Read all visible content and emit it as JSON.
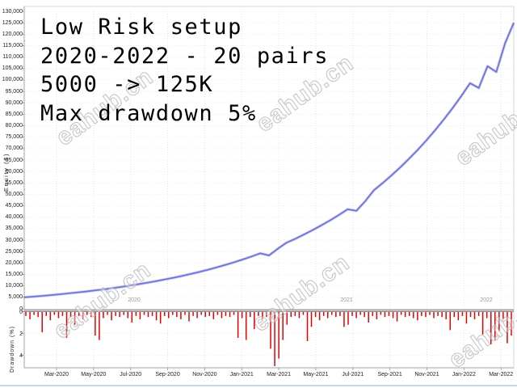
{
  "watermark": {
    "text": "eahub.cn"
  },
  "annotation": {
    "lines": [
      "Low Risk setup",
      "2020-2022 - 20 pairs",
      "5000 -> 125K",
      "Max drawdown 5%"
    ]
  },
  "colors": {
    "equity_line": "#6f74da",
    "equity_glow": "rgba(111,116,218,0.32)",
    "drawdown_bar": "#e60000",
    "grid_h": "#ededf0",
    "grid_v": "#e3e3e8",
    "axis": "#a3a3a3",
    "panel_border": "#d7d7d7",
    "year_label": "#9a9a9a",
    "accent_bottom_bar": "#c7d6f2"
  },
  "chart_data": [
    {
      "type": "line",
      "name": "equity-curve",
      "title": "",
      "xlabel": "",
      "ylabel": "Equity ($)",
      "ylim": [
        0,
        130000
      ],
      "y_tick_step": 5000,
      "grid": true,
      "legend": "none",
      "x_tick_labels": [
        "Mar-2020",
        "May-2020",
        "Jul-2020",
        "Sep-2020",
        "Nov-2020",
        "Jan-2021",
        "Mar-2021",
        "May-2021",
        "Jul-2021",
        "Sep-2021",
        "Nov-2021",
        "Jan-2022",
        "Mar-2022"
      ],
      "year_labels": [
        "2020",
        "2021",
        "2022"
      ],
      "series": [
        {
          "name": "Equity",
          "values": [
            5000,
            5300,
            5620,
            5960,
            6320,
            6700,
            7100,
            7530,
            7980,
            8460,
            8970,
            9510,
            10080,
            10690,
            11330,
            12010,
            12740,
            13500,
            14320,
            15180,
            16090,
            17060,
            18090,
            19180,
            20330,
            21560,
            22850,
            24230,
            23300,
            26200,
            28870,
            30610,
            32450,
            34400,
            36480,
            38680,
            41010,
            43480,
            42800,
            47000,
            51820,
            54940,
            58250,
            61760,
            65480,
            69420,
            73600,
            78030,
            82730,
            87710,
            93000,
            98600,
            96500,
            106000,
            103500,
            116000,
            125000
          ]
        }
      ]
    },
    {
      "type": "bar",
      "name": "drawdown-bars",
      "title": "",
      "xlabel": "",
      "ylabel": "Drawdown (%)",
      "ylim": [
        -5.2,
        0
      ],
      "y_tick_labels": [
        "0",
        "2",
        "4"
      ],
      "grid": true,
      "values": [
        -0.4,
        -0.7,
        -0.3,
        -0.5,
        -1.9,
        -0.4,
        -0.8,
        -0.3,
        -0.6,
        -0.4,
        -2.4,
        -0.5,
        -1.2,
        -0.4,
        -0.7,
        -0.3,
        -0.5,
        -2.2,
        -2.6,
        -0.6,
        -0.3,
        -0.8,
        -0.4,
        -0.5,
        -0.3,
        -0.6,
        -1.0,
        -0.4,
        -0.7,
        -0.3,
        -0.5,
        -0.4,
        -0.8,
        -1.1,
        -0.4,
        -0.6,
        -0.3,
        -0.5,
        -0.7,
        -0.3,
        -0.9,
        -0.4,
        -0.6,
        -0.3,
        -0.5,
        -0.4,
        -0.7,
        -0.3,
        -0.6,
        -0.4,
        -0.5,
        -0.3,
        -2.4,
        -0.6,
        -2.6,
        -0.5,
        -1.6,
        -0.4,
        -0.7,
        -0.5,
        -3.4,
        -5.0,
        -4.3,
        -2.6,
        -1.2,
        -0.5,
        -0.4,
        -0.6,
        -0.3,
        -2.7,
        -1.4,
        -0.5,
        -0.8,
        -0.4,
        -0.6,
        -0.3,
        -0.5,
        -0.4,
        -1.4,
        -1.2,
        -0.4,
        -0.6,
        -0.3,
        -0.5,
        -1.0,
        -0.4,
        -0.7,
        -0.3,
        -0.5,
        -0.4,
        -0.6,
        -0.9,
        -0.3,
        -0.5,
        -0.4,
        -0.6,
        -0.8,
        -0.4,
        -0.5,
        -0.3,
        -0.6,
        -0.4,
        -0.5,
        -0.7,
        -1.7,
        -0.5,
        -0.8,
        -0.4,
        -1.1,
        -0.5,
        -0.7,
        -0.4,
        -2.1,
        -0.6,
        -3.0,
        -2.6,
        -1.8,
        -0.7,
        -2.9,
        -2.2
      ]
    }
  ]
}
